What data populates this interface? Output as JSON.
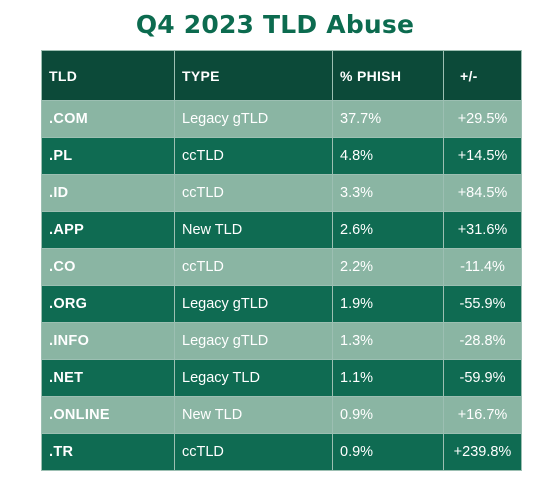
{
  "title": "Q4 2023 TLD Abuse",
  "colors": {
    "title": "#0c6b4f",
    "header_bg": "#0c4a39",
    "row_dark_bg": "#0f6b52",
    "row_light_bg": "#8ab5a3",
    "text": "#ffffff"
  },
  "chart_data": {
    "type": "table",
    "title": "Q4 2023 TLD Abuse",
    "columns": [
      "TLD",
      "TYPE",
      "% PHISH",
      "+/-"
    ],
    "rows": [
      [
        ".COM",
        "Legacy gTLD",
        "37.7%",
        "+29.5%"
      ],
      [
        ".PL",
        "ccTLD",
        "4.8%",
        "+14.5%"
      ],
      [
        ".ID",
        "ccTLD",
        "3.3%",
        "+84.5%"
      ],
      [
        ".APP",
        "New TLD",
        "2.6%",
        "+31.6%"
      ],
      [
        ".CO",
        "ccTLD",
        "2.2%",
        "-11.4%"
      ],
      [
        ".ORG",
        "Legacy gTLD",
        "1.9%",
        "-55.9%"
      ],
      [
        ".INFO",
        "Legacy gTLD",
        "1.3%",
        "-28.8%"
      ],
      [
        ".NET",
        "Legacy TLD",
        "1.1%",
        "-59.9%"
      ],
      [
        ".ONLINE",
        "New TLD",
        "0.9%",
        "+16.7%"
      ],
      [
        ".TR",
        "ccTLD",
        "0.9%",
        "+239.8%"
      ]
    ]
  }
}
